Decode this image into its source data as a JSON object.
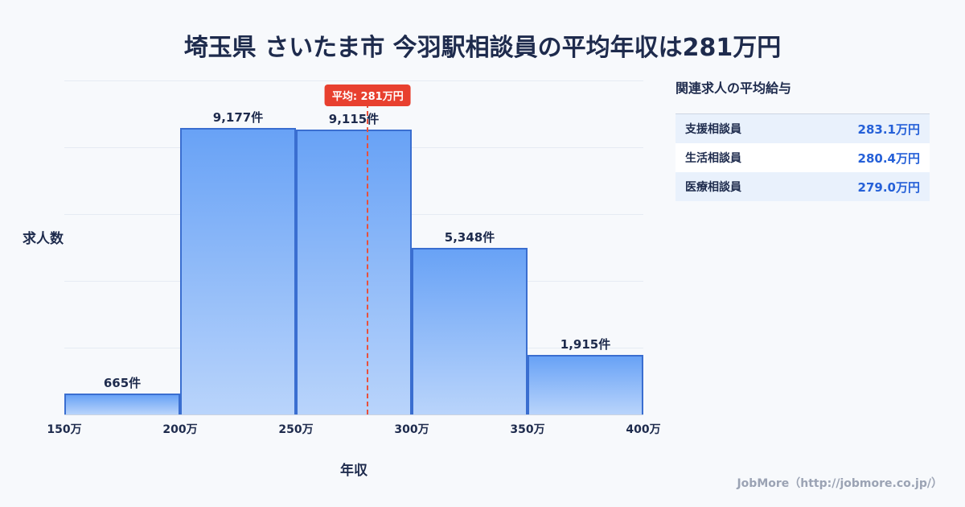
{
  "title": "埼玉県 さいたま市 今羽駅相談員の平均年収は281万円",
  "chart_data": {
    "type": "bar",
    "title": "",
    "categories": [
      "150万-200万",
      "200万-250万",
      "250万-300万",
      "300万-350万",
      "350万-400万"
    ],
    "values": [
      665,
      9177,
      9115,
      5348,
      1915
    ],
    "bar_labels": [
      "665件",
      "9,177件",
      "9,115件",
      "5,348件",
      "1,915件"
    ],
    "x_ticks": [
      "150万",
      "200万",
      "250万",
      "300万",
      "350万",
      "400万"
    ],
    "xlabel": "年収",
    "ylabel": "求人数",
    "xlim": [
      150,
      400
    ],
    "ylim": [
      0,
      10700
    ],
    "grid": true,
    "legend_position": "none",
    "average_line": {
      "value": 281,
      "label": "平均: 281万円",
      "style": "dashed"
    }
  },
  "side_panel": {
    "heading": "関連求人の平均給与",
    "rows": [
      {
        "label": "支援相談員",
        "value": "283.1万円"
      },
      {
        "label": "生活相談員",
        "value": "280.4万円"
      },
      {
        "label": "医療相談員",
        "value": "279.0万円"
      }
    ]
  },
  "footer": {
    "credit": "JobMore（http://jobmore.co.jp/）"
  },
  "colors": {
    "background": "#f7f9fc",
    "title_navy": "#1e2b4d",
    "bar_border": "#3a6ed0",
    "bar_fill_top": "#68a2f6",
    "bar_fill_bottom": "#b9d4fb",
    "average_red": "#e8402f",
    "value_blue": "#2560d8"
  }
}
